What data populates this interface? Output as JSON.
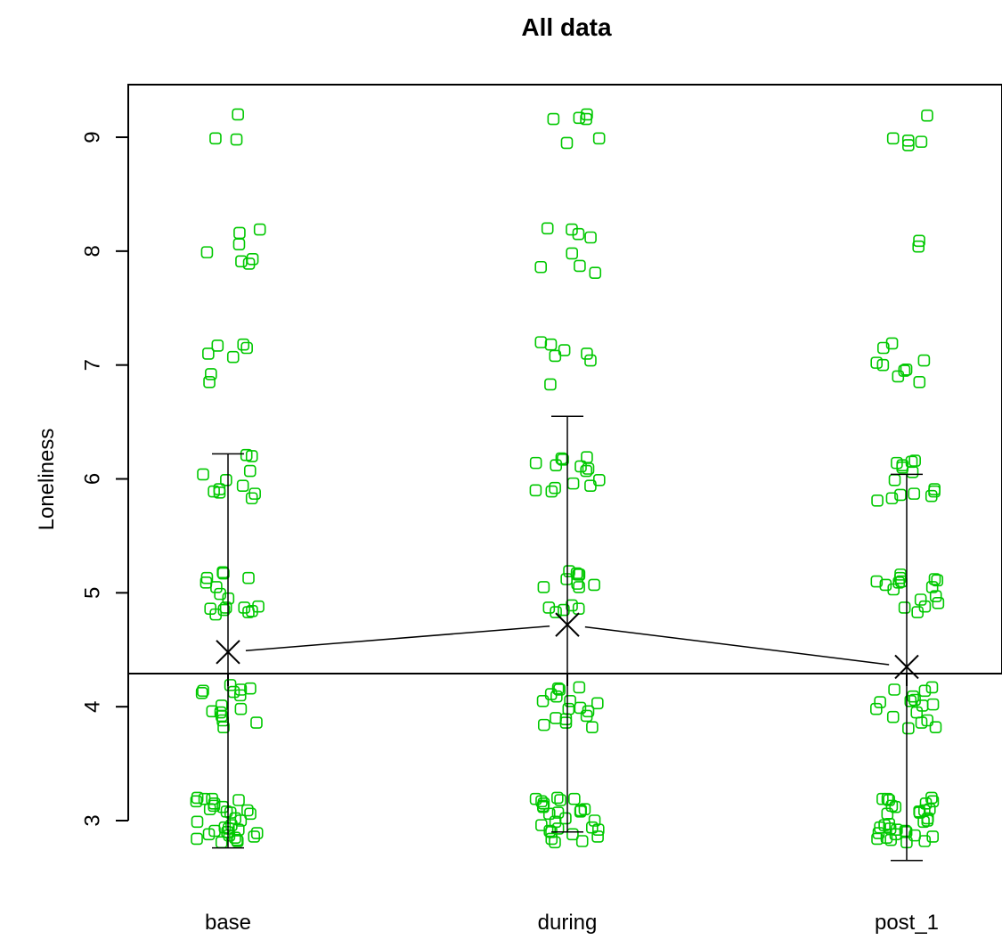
{
  "chart_data": {
    "type": "scatter",
    "title": "All data",
    "xlabel": "",
    "ylabel": "Loneliness",
    "categories": [
      "base",
      "during",
      "post_1"
    ],
    "y_ticks": [
      "3",
      "4",
      "5",
      "6",
      "7",
      "8",
      "9"
    ],
    "ylim": [
      2.5,
      9.3
    ],
    "grid": false,
    "legend": "none",
    "colors": {
      "points": "#00c800",
      "summary": "#000000"
    },
    "summary": {
      "means": [
        4.48,
        4.72,
        4.35
      ],
      "error_low": [
        2.76,
        2.9,
        2.65
      ],
      "error_high": [
        6.22,
        6.55,
        6.04
      ]
    },
    "points": [
      {
        "category": "base",
        "y": [
          9.2,
          8.99,
          8.98,
          8.19,
          8.16,
          8.06,
          7.99,
          7.93,
          7.91,
          7.89,
          7.18,
          7.17,
          7.15,
          7.1,
          7.07,
          6.92,
          6.85,
          6.21,
          6.2,
          6.07,
          6.04,
          5.99,
          5.94,
          5.91,
          5.89,
          5.88,
          5.87,
          5.83,
          5.18,
          5.17,
          5.13,
          5.13,
          5.09,
          5.05,
          4.99,
          4.95,
          4.88,
          4.87,
          4.87,
          4.86,
          4.85,
          4.84,
          4.83,
          4.81,
          4.19,
          4.16,
          4.15,
          4.14,
          4.13,
          4.12,
          4.1,
          4.01,
          3.98,
          3.96,
          3.95,
          3.92,
          3.88,
          3.86,
          3.82,
          3.2,
          3.19,
          3.19,
          3.18,
          3.17,
          3.15,
          3.13,
          3.12,
          3.1,
          3.09,
          3.08,
          3.07,
          3.06,
          3.02,
          3.0,
          2.99,
          2.96,
          2.94,
          2.93,
          2.92,
          2.91,
          2.9,
          2.89,
          2.88,
          2.87,
          2.86,
          2.85,
          2.84,
          2.83,
          2.82,
          2.81
        ]
      },
      {
        "category": "during",
        "y": [
          9.2,
          9.17,
          9.16,
          9.16,
          8.99,
          8.95,
          8.2,
          8.19,
          8.15,
          8.12,
          7.98,
          7.87,
          7.86,
          7.81,
          7.2,
          7.18,
          7.13,
          7.1,
          7.08,
          7.04,
          6.83,
          6.19,
          6.18,
          6.17,
          6.14,
          6.12,
          6.11,
          6.09,
          6.07,
          5.99,
          5.96,
          5.94,
          5.92,
          5.9,
          5.89,
          5.19,
          5.17,
          5.16,
          5.16,
          5.12,
          5.08,
          5.07,
          5.05,
          5.05,
          4.89,
          4.87,
          4.86,
          4.85,
          4.83,
          4.17,
          4.16,
          4.15,
          4.11,
          4.09,
          4.05,
          4.05,
          4.03,
          3.99,
          3.98,
          3.96,
          3.92,
          3.9,
          3.89,
          3.86,
          3.84,
          3.82,
          3.2,
          3.19,
          3.19,
          3.18,
          3.17,
          3.15,
          3.13,
          3.12,
          3.1,
          3.09,
          3.08,
          3.07,
          3.06,
          3.02,
          3.0,
          2.99,
          2.96,
          2.94,
          2.93,
          2.92,
          2.91,
          2.9,
          2.88,
          2.86,
          2.84,
          2.82,
          2.81
        ]
      },
      {
        "category": "post_1",
        "y": [
          9.19,
          8.99,
          8.97,
          8.96,
          8.93,
          8.09,
          8.04,
          7.19,
          7.15,
          7.04,
          7.02,
          7.0,
          6.96,
          6.95,
          6.9,
          6.85,
          6.16,
          6.15,
          6.14,
          6.12,
          6.1,
          6.06,
          5.99,
          5.91,
          5.89,
          5.87,
          5.86,
          5.85,
          5.83,
          5.81,
          5.16,
          5.13,
          5.12,
          5.11,
          5.1,
          5.1,
          5.09,
          5.07,
          5.05,
          5.03,
          4.97,
          4.94,
          4.91,
          4.88,
          4.87,
          4.83,
          4.17,
          4.15,
          4.14,
          4.09,
          4.06,
          4.05,
          4.04,
          4.02,
          4.01,
          3.98,
          3.95,
          3.91,
          3.88,
          3.86,
          3.82,
          3.81,
          3.2,
          3.19,
          3.19,
          3.18,
          3.17,
          3.15,
          3.13,
          3.12,
          3.1,
          3.09,
          3.08,
          3.07,
          3.06,
          3.02,
          3.0,
          2.99,
          2.97,
          2.96,
          2.94,
          2.93,
          2.92,
          2.91,
          2.9,
          2.89,
          2.88,
          2.87,
          2.86,
          2.85,
          2.84,
          2.83,
          2.82,
          2.81
        ]
      }
    ]
  }
}
